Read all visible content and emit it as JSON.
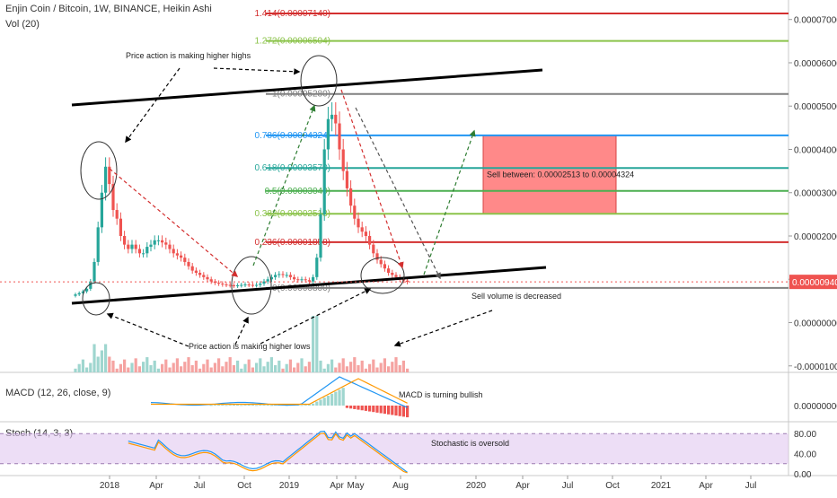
{
  "header": {
    "symbol_line": "Enjin Coin / Bitcoin, 1W, BINANCE, Heikin Ashi",
    "vol_label": "Vol (20)"
  },
  "colors": {
    "bull": "#26a69a",
    "bull_light": "#9fd6cf",
    "bear": "#ef5350",
    "bear_light": "#f5a3a1",
    "stoch_band": "#e1c8f0",
    "macd_line": "#2196f3",
    "signal_line": "#ff9800",
    "sell_zone": "#ff7d7d"
  },
  "price_axis": {
    "labels": [
      "0.00007000",
      "0.00006000",
      "0.00005000",
      "0.00004000",
      "0.00003000",
      "0.00002000",
      "0.00001000",
      "0.00000000",
      "-0.00001000"
    ],
    "last_price": "0.00000940"
  },
  "time_axis": {
    "labels": [
      "2018",
      "Apr",
      "Jul",
      "Oct",
      "2019",
      "Apr",
      "May",
      "Aug",
      "2020",
      "Apr",
      "Jul",
      "Oct",
      "2021",
      "Apr",
      "Jul"
    ]
  },
  "fib_levels": [
    {
      "label": "1.414(0.00007140)",
      "value": 7.14e-05,
      "color": "#d32f2f"
    },
    {
      "label": "1.272(0.00006504)",
      "value": 6.504e-05,
      "color": "#8bc34a"
    },
    {
      "label": "1(0.00005280)",
      "value": 5.28e-05,
      "color": "#808080"
    },
    {
      "label": "0.786(0.00004324)",
      "value": 4.324e-05,
      "color": "#2196f3"
    },
    {
      "label": "0.618(0.00003570)",
      "value": 3.57e-05,
      "color": "#26a69a"
    },
    {
      "label": "0.5(0.00003040)",
      "value": 3.04e-05,
      "color": "#4caf50"
    },
    {
      "label": "0.382(0.00002513)",
      "value": 2.513e-05,
      "color": "#8bc34a"
    },
    {
      "label": "0.236(0.00001858)",
      "value": 1.858e-05,
      "color": "#d32f2f"
    },
    {
      "label": "0(0.00000800)",
      "value": 8e-06,
      "color": "#808080"
    }
  ],
  "annotations": {
    "higher_highs": "Price action is making higher highs",
    "higher_lows": "Price action is making higher lows",
    "sell_volume": "Sell volume is decreased",
    "sell_zone": "Sell between: 0.00002513 to 0.00004324",
    "macd_note": "MACD is turning bullish",
    "stoch_note": "Stochastic is oversold"
  },
  "macd_panel": {
    "label": "MACD (12, 26, close, 9)",
    "axis_label": "0.00000000"
  },
  "stoch_panel": {
    "label": "Stoch (14, 3, 3)",
    "axis_labels": [
      "80.00",
      "40.00",
      "0.00"
    ]
  },
  "chart_data": {
    "type": "candlestick",
    "title": "Enjin Coin / Bitcoin, 1W, BINANCE, Heikin Ashi",
    "x_start": "2017-11",
    "x_interval": "1W",
    "y_unit": "BTC",
    "ylim": [
      -1.15e-05,
      7.45e-05
    ],
    "last_price": 9.4e-06,
    "series": [
      {
        "name": "Heikin Ashi close (approx.)",
        "values": [
          6.5e-06,
          6.8e-06,
          7.2e-06,
          7.8e-06,
          9.5e-06,
          1.4e-05,
          2.2e-05,
          3e-05,
          3.6e-05,
          3.2e-05,
          2.6e-05,
          2.4e-05,
          2e-05,
          1.8e-05,
          1.7e-05,
          1.8e-05,
          1.7e-05,
          1.6e-05,
          1.6e-05,
          1.75e-05,
          1.8e-05,
          1.9e-05,
          1.9e-05,
          1.85e-05,
          1.8e-05,
          1.7e-05,
          1.6e-05,
          1.55e-05,
          1.5e-05,
          1.4e-05,
          1.3e-05,
          1.2e-05,
          1.15e-05,
          1.1e-05,
          1.05e-05,
          1e-05,
          9.5e-06,
          9.2e-06,
          9e-06,
          8.8e-06,
          8.7e-06,
          8.6e-06,
          8.5e-06,
          8.6e-06,
          8.7e-06,
          8.8e-06,
          8.7e-06,
          8.6e-06,
          8.7e-06,
          9e-06,
          9.5e-06,
          1e-05,
          1.05e-05,
          1.1e-05,
          1.12e-05,
          1.1e-05,
          1.1e-05,
          1.05e-05,
          1e-05,
          9.8e-06,
          1e-05,
          9.8e-06,
          9.5e-06,
          1.05e-05,
          1.5e-05,
          2.5e-05,
          4e-05,
          4.7e-05,
          4.8e-05,
          4.6e-05,
          4e-05,
          3.5e-05,
          3.1e-05,
          2.7e-05,
          2.4e-05,
          2.2e-05,
          2.1e-05,
          2e-05,
          1.8e-05,
          1.6e-05,
          1.45e-05,
          1.35e-05,
          1.25e-05,
          1.15e-05,
          1.1e-05,
          1.05e-05,
          1e-05,
          9.7e-06,
          9.4e-06
        ]
      }
    ],
    "channel": {
      "upper": {
        "from": [
          "2017-11",
          4.8e-05
        ],
        "to": [
          "2019-11",
          5.8e-05
        ]
      },
      "lower": {
        "from": [
          "2017-11",
          2e-06
        ],
        "to": [
          "2019-11",
          1.1e-05
        ]
      }
    },
    "sell_zone": {
      "from": "2019-10",
      "to": "2020-12",
      "low": 2.513e-05,
      "high": 4.324e-05
    },
    "macd_panel": {
      "type": "bar+line",
      "yref": 0
    },
    "stoch_panel": {
      "ylim": [
        0,
        100
      ],
      "bands": [
        20,
        80
      ]
    }
  }
}
